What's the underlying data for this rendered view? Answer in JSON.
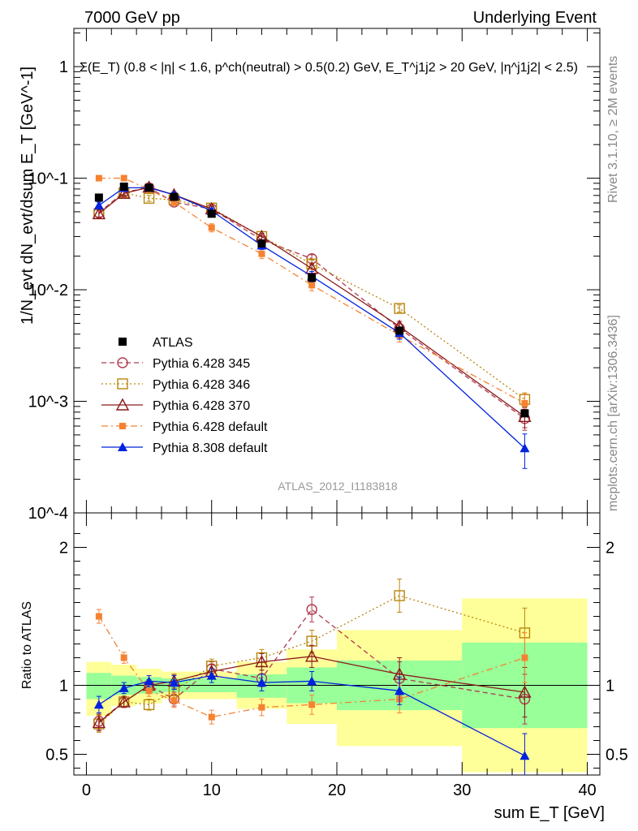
{
  "header": {
    "left": "7000 GeV pp",
    "right": "Underlying Event",
    "annotation": "Σ(E_T) (0.8 < |η| < 1.6, p^ch(neutral) > 0.5(0.2) GeV, E_T^j1j2 > 20 GeV, |η^j1j2| < 2.5)"
  },
  "side": {
    "rivet": "Rivet 3.1.10, ≥ 2M events",
    "mcplots": "mcplots.cern.ch [arXiv:1306.3436]"
  },
  "watermark": "ATLAS_2012_I1183818",
  "colors": {
    "atlas": "#000000",
    "p345": "#b03a4e",
    "p346": "#b8860b",
    "p370": "#8b1a1a",
    "p6def": "#f58231",
    "p8def": "#0022dd",
    "band_inner": "#99ff99",
    "band_outer": "#ffff99"
  },
  "chart_data": [
    {
      "type": "scatter",
      "name": "main",
      "ylabel": "1/N_evt dN_evt/dsum E_T [GeV^-1]",
      "yscale": "log",
      "xlim": [
        -1,
        41
      ],
      "ylim": [
        0.0001,
        2.2
      ],
      "yticks": [
        {
          "v": 1,
          "t": "1"
        },
        {
          "v": 0.1,
          "t": "10^-1"
        },
        {
          "v": 0.01,
          "t": "10^-2"
        },
        {
          "v": 0.001,
          "t": "10^-3"
        },
        {
          "v": 0.0001,
          "t": "10^-4"
        }
      ],
      "legend_position": "middle-left",
      "series": [
        {
          "name": "ATLAS",
          "key": "atlas",
          "style": "data",
          "x": [
            1,
            3,
            5,
            7,
            10,
            14,
            18,
            25,
            35
          ],
          "y": [
            0.067,
            0.084,
            0.082,
            0.068,
            0.048,
            0.026,
            0.0128,
            0.0043,
            0.00078
          ],
          "xerr": [
            1,
            1,
            1,
            1,
            2,
            2,
            2,
            5,
            5
          ]
        },
        {
          "name": "Pythia 6.428 345",
          "key": "p345",
          "style": "open-circle-dashed",
          "x": [
            1,
            3,
            5,
            7,
            10,
            14,
            18,
            25,
            35
          ],
          "y": [
            0.049,
            0.075,
            0.082,
            0.061,
            0.053,
            0.028,
            0.019,
            0.0045,
            0.0007
          ],
          "yerr": [
            0.004,
            0.004,
            0.004,
            0.004,
            0.003,
            0.002,
            0.0016,
            0.0005,
            0.00015
          ]
        },
        {
          "name": "Pythia 6.428 346",
          "key": "p346",
          "style": "open-square-dotted",
          "x": [
            1,
            3,
            5,
            7,
            10,
            14,
            18,
            25,
            35
          ],
          "y": [
            0.048,
            0.074,
            0.066,
            0.064,
            0.054,
            0.03,
            0.017,
            0.0068,
            0.00104
          ],
          "yerr": [
            0.004,
            0.004,
            0.004,
            0.004,
            0.003,
            0.002,
            0.0015,
            0.0005,
            0.00015
          ]
        },
        {
          "name": "Pythia 6.428 370",
          "key": "p370",
          "style": "open-triangle-solid",
          "x": [
            1,
            3,
            5,
            7,
            10,
            14,
            18,
            25,
            35
          ],
          "y": [
            0.048,
            0.073,
            0.083,
            0.071,
            0.053,
            0.03,
            0.0155,
            0.0047,
            0.00073
          ],
          "yerr": [
            0.004,
            0.004,
            0.004,
            0.004,
            0.003,
            0.002,
            0.0014,
            0.0005,
            0.00015
          ]
        },
        {
          "name": "Pythia 6.428 default",
          "key": "p6def",
          "style": "filled-square-dashdot",
          "x": [
            1,
            3,
            5,
            7,
            10,
            14,
            18,
            25,
            35
          ],
          "y": [
            0.1,
            0.1,
            0.079,
            0.061,
            0.036,
            0.021,
            0.011,
            0.0039,
            0.00096
          ],
          "yerr": [
            0.004,
            0.004,
            0.004,
            0.004,
            0.003,
            0.002,
            0.0012,
            0.0005,
            0.0002
          ]
        },
        {
          "name": "Pythia 8.308 default",
          "key": "p8def",
          "style": "filled-triangle-solid",
          "x": [
            1,
            3,
            5,
            7,
            10,
            14,
            18,
            25,
            35
          ],
          "y": [
            0.057,
            0.082,
            0.082,
            0.071,
            0.051,
            0.025,
            0.0132,
            0.0041,
            0.00038
          ],
          "yerr": [
            0.004,
            0.004,
            0.004,
            0.004,
            0.003,
            0.002,
            0.0014,
            0.0005,
            0.00013
          ]
        }
      ]
    },
    {
      "type": "scatter",
      "name": "ratio",
      "xlabel": "sum E_T [GeV]",
      "ylabel": "Ratio to ATLAS",
      "xlim": [
        -1,
        41
      ],
      "ylim": [
        0.35,
        2.25
      ],
      "xticks": [
        0,
        10,
        20,
        30,
        40
      ],
      "yticks": [
        0.5,
        1,
        2
      ],
      "bands": [
        {
          "x0": 0,
          "x1": 2,
          "inner": [
            0.9,
            1.09
          ],
          "outer": [
            0.78,
            1.17
          ]
        },
        {
          "x0": 2,
          "x1": 4,
          "inner": [
            0.93,
            1.07
          ],
          "outer": [
            0.85,
            1.15
          ]
        },
        {
          "x0": 4,
          "x1": 6,
          "inner": [
            0.94,
            1.06
          ],
          "outer": [
            0.87,
            1.12
          ]
        },
        {
          "x0": 6,
          "x1": 8,
          "inner": [
            0.95,
            1.05
          ],
          "outer": [
            0.9,
            1.1
          ]
        },
        {
          "x0": 8,
          "x1": 12,
          "inner": [
            0.95,
            1.05
          ],
          "outer": [
            0.9,
            1.1
          ]
        },
        {
          "x0": 12,
          "x1": 16,
          "inner": [
            0.91,
            1.08
          ],
          "outer": [
            0.83,
            1.17
          ]
        },
        {
          "x0": 16,
          "x1": 20,
          "inner": [
            0.87,
            1.13
          ],
          "outer": [
            0.72,
            1.26
          ]
        },
        {
          "x0": 20,
          "x1": 30,
          "inner": [
            0.82,
            1.18
          ],
          "outer": [
            0.56,
            1.4
          ]
        },
        {
          "x0": 30,
          "x1": 40,
          "inner": [
            0.69,
            1.31
          ],
          "outer": [
            0.37,
            1.63
          ]
        }
      ],
      "series": [
        {
          "key": "p345",
          "style": "open-circle-dashed",
          "x": [
            1,
            3,
            5,
            7,
            10,
            14,
            18,
            25,
            35
          ],
          "y": [
            0.74,
            0.88,
            1.0,
            0.9,
            1.12,
            1.05,
            1.55,
            1.05,
            0.9
          ],
          "yerr": [
            0.06,
            0.04,
            0.04,
            0.05,
            0.05,
            0.06,
            0.09,
            0.12,
            0.18
          ]
        },
        {
          "key": "p346",
          "style": "open-square-dotted",
          "x": [
            1,
            3,
            5,
            7,
            10,
            14,
            18,
            25,
            35
          ],
          "y": [
            0.72,
            0.88,
            0.86,
            0.96,
            1.14,
            1.2,
            1.32,
            1.65,
            1.38
          ],
          "yerr": [
            0.06,
            0.04,
            0.04,
            0.05,
            0.05,
            0.06,
            0.08,
            0.12,
            0.18
          ]
        },
        {
          "key": "p370",
          "style": "open-triangle-solid",
          "x": [
            1,
            3,
            5,
            7,
            10,
            14,
            18,
            25,
            35
          ],
          "y": [
            0.73,
            0.88,
            1.0,
            1.03,
            1.1,
            1.17,
            1.21,
            1.08,
            0.95
          ],
          "yerr": [
            0.06,
            0.04,
            0.04,
            0.05,
            0.05,
            0.06,
            0.08,
            0.12,
            0.18
          ]
        },
        {
          "key": "p6def",
          "style": "filled-square-dashdot",
          "x": [
            1,
            3,
            5,
            7,
            10,
            14,
            18,
            25,
            35
          ],
          "y": [
            1.5,
            1.2,
            0.96,
            0.89,
            0.77,
            0.84,
            0.86,
            0.9,
            1.2
          ],
          "yerr": [
            0.05,
            0.04,
            0.04,
            0.05,
            0.05,
            0.06,
            0.07,
            0.1,
            0.18
          ]
        },
        {
          "key": "p8def",
          "style": "filled-triangle-solid",
          "x": [
            1,
            3,
            5,
            7,
            10,
            14,
            18,
            25,
            35
          ],
          "y": [
            0.86,
            0.98,
            1.03,
            1.02,
            1.07,
            1.02,
            1.03,
            0.96,
            0.49
          ],
          "yerr": [
            0.06,
            0.04,
            0.04,
            0.05,
            0.05,
            0.06,
            0.07,
            0.1,
            0.16
          ]
        }
      ]
    }
  ]
}
